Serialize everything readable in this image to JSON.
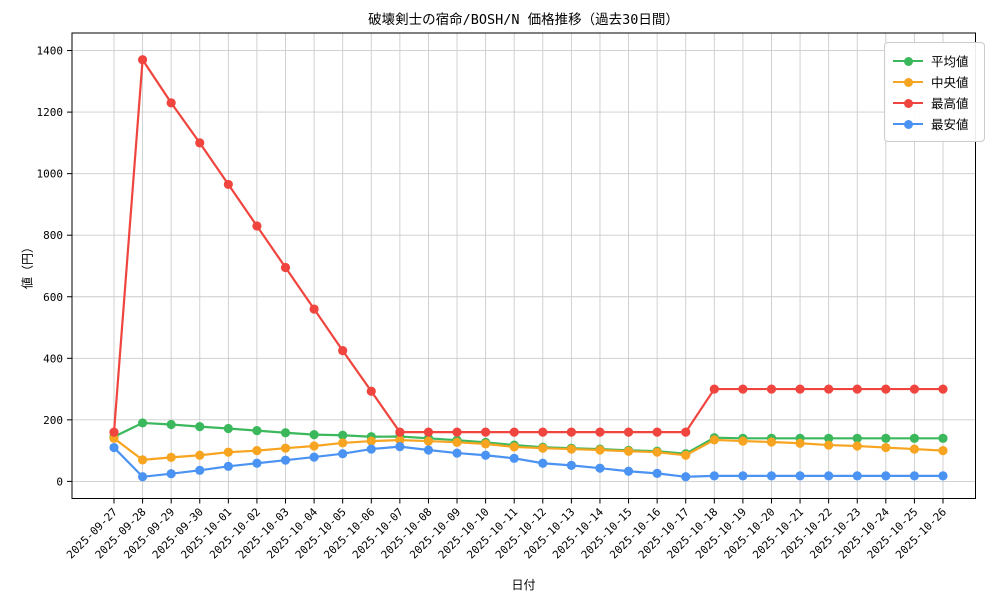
{
  "chart_data": {
    "type": "line",
    "title": "破壊剣士の宿命/BOSH/N 価格推移（過去30日間）",
    "xlabel": "日付",
    "ylabel": "値（円）",
    "ylim": [
      0,
      1400
    ],
    "yticks": [
      0,
      200,
      400,
      600,
      800,
      1000,
      1200,
      1400
    ],
    "grid": true,
    "legend_position": "upper right",
    "categories": [
      "2025-09-27",
      "2025-09-28",
      "2025-09-29",
      "2025-09-30",
      "2025-10-01",
      "2025-10-02",
      "2025-10-03",
      "2025-10-04",
      "2025-10-05",
      "2025-10-06",
      "2025-10-07",
      "2025-10-08",
      "2025-10-09",
      "2025-10-10",
      "2025-10-11",
      "2025-10-12",
      "2025-10-13",
      "2025-10-14",
      "2025-10-15",
      "2025-10-16",
      "2025-10-17",
      "2025-10-18",
      "2025-10-19",
      "2025-10-20",
      "2025-10-21",
      "2025-10-22",
      "2025-10-23",
      "2025-10-24",
      "2025-10-25",
      "2025-10-26"
    ],
    "series": [
      {
        "name": "平均値",
        "color": "#3cb85c",
        "values": [
          145,
          190,
          185,
          178,
          172,
          165,
          158,
          152,
          150,
          145,
          146,
          140,
          134,
          127,
          118,
          111,
          108,
          105,
          101,
          98,
          90,
          142,
          140,
          140,
          140,
          140,
          140,
          140,
          140,
          140
        ]
      },
      {
        "name": "中央値",
        "color": "#f7a420",
        "values": [
          140,
          70,
          78,
          85,
          95,
          100,
          108,
          115,
          125,
          131,
          134,
          131,
          127,
          122,
          112,
          108,
          105,
          102,
          98,
          95,
          85,
          135,
          131,
          128,
          124,
          118,
          115,
          110,
          105,
          100
        ]
      },
      {
        "name": "最高値",
        "color": "#ef453e",
        "values": [
          160,
          1370,
          1230,
          1100,
          965,
          830,
          695,
          560,
          425,
          293,
          160,
          160,
          160,
          160,
          160,
          160,
          160,
          160,
          160,
          160,
          160,
          300,
          300,
          300,
          300,
          300,
          300,
          300,
          300,
          300
        ]
      },
      {
        "name": "最安値",
        "color": "#4b93f2",
        "values": [
          110,
          15,
          25,
          36,
          49,
          59,
          69,
          79,
          90,
          105,
          113,
          102,
          92,
          85,
          75,
          59,
          52,
          43,
          33,
          26,
          15,
          18,
          18,
          18,
          18,
          18,
          18,
          18,
          18,
          18
        ]
      }
    ]
  }
}
